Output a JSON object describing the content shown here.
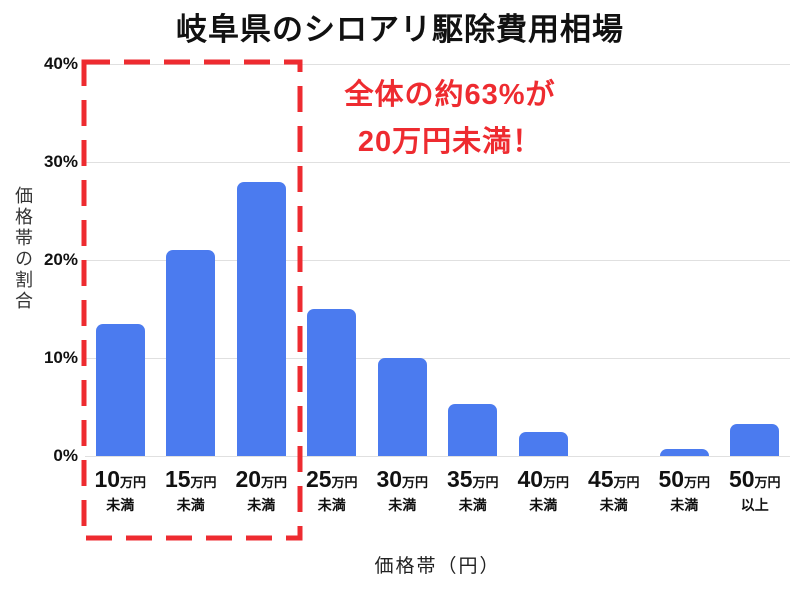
{
  "colors": {
    "bar_blue": "#4b7bef",
    "accent_red": "#ee2b30",
    "grid": "#e0e0e0",
    "text": "#111111"
  },
  "annotation": {
    "line1": "全体の約63%が",
    "line2": "20万円未満！"
  },
  "chart_data": {
    "type": "bar",
    "title": "岐阜県のシロアリ駆除費用相場",
    "xlabel": "価格帯（円）",
    "ylabel": "価格帯の割合",
    "ylim": [
      0,
      40
    ],
    "grid": true,
    "legend": false,
    "yticks": [
      {
        "value": 0,
        "label": "0%"
      },
      {
        "value": 10,
        "label": "10%"
      },
      {
        "value": 20,
        "label": "20%"
      },
      {
        "value": 30,
        "label": "30%"
      },
      {
        "value": 40,
        "label": "40%"
      }
    ],
    "categories": [
      {
        "num": "10",
        "unit": "万円",
        "sub": "未満",
        "full": "10万円未満"
      },
      {
        "num": "15",
        "unit": "万円",
        "sub": "未満",
        "full": "15万円未満"
      },
      {
        "num": "20",
        "unit": "万円",
        "sub": "未満",
        "full": "20万円未満"
      },
      {
        "num": "25",
        "unit": "万円",
        "sub": "未満",
        "full": "25万円未満"
      },
      {
        "num": "30",
        "unit": "万円",
        "sub": "未満",
        "full": "30万円未満"
      },
      {
        "num": "35",
        "unit": "万円",
        "sub": "未満",
        "full": "35万円未満"
      },
      {
        "num": "40",
        "unit": "万円",
        "sub": "未満",
        "full": "40万円未満"
      },
      {
        "num": "45",
        "unit": "万円",
        "sub": "未満",
        "full": "45万円未満"
      },
      {
        "num": "50",
        "unit": "万円",
        "sub": "未満",
        "full": "50万円未満"
      },
      {
        "num": "50",
        "unit": "万円",
        "sub": "以上",
        "full": "50万円以上"
      }
    ],
    "values": [
      13.5,
      21,
      28,
      15,
      10,
      5.3,
      2.5,
      0,
      0.7,
      3.3
    ],
    "highlight": {
      "type": "dashed-rect",
      "covers_first_n_categories": 3
    }
  }
}
